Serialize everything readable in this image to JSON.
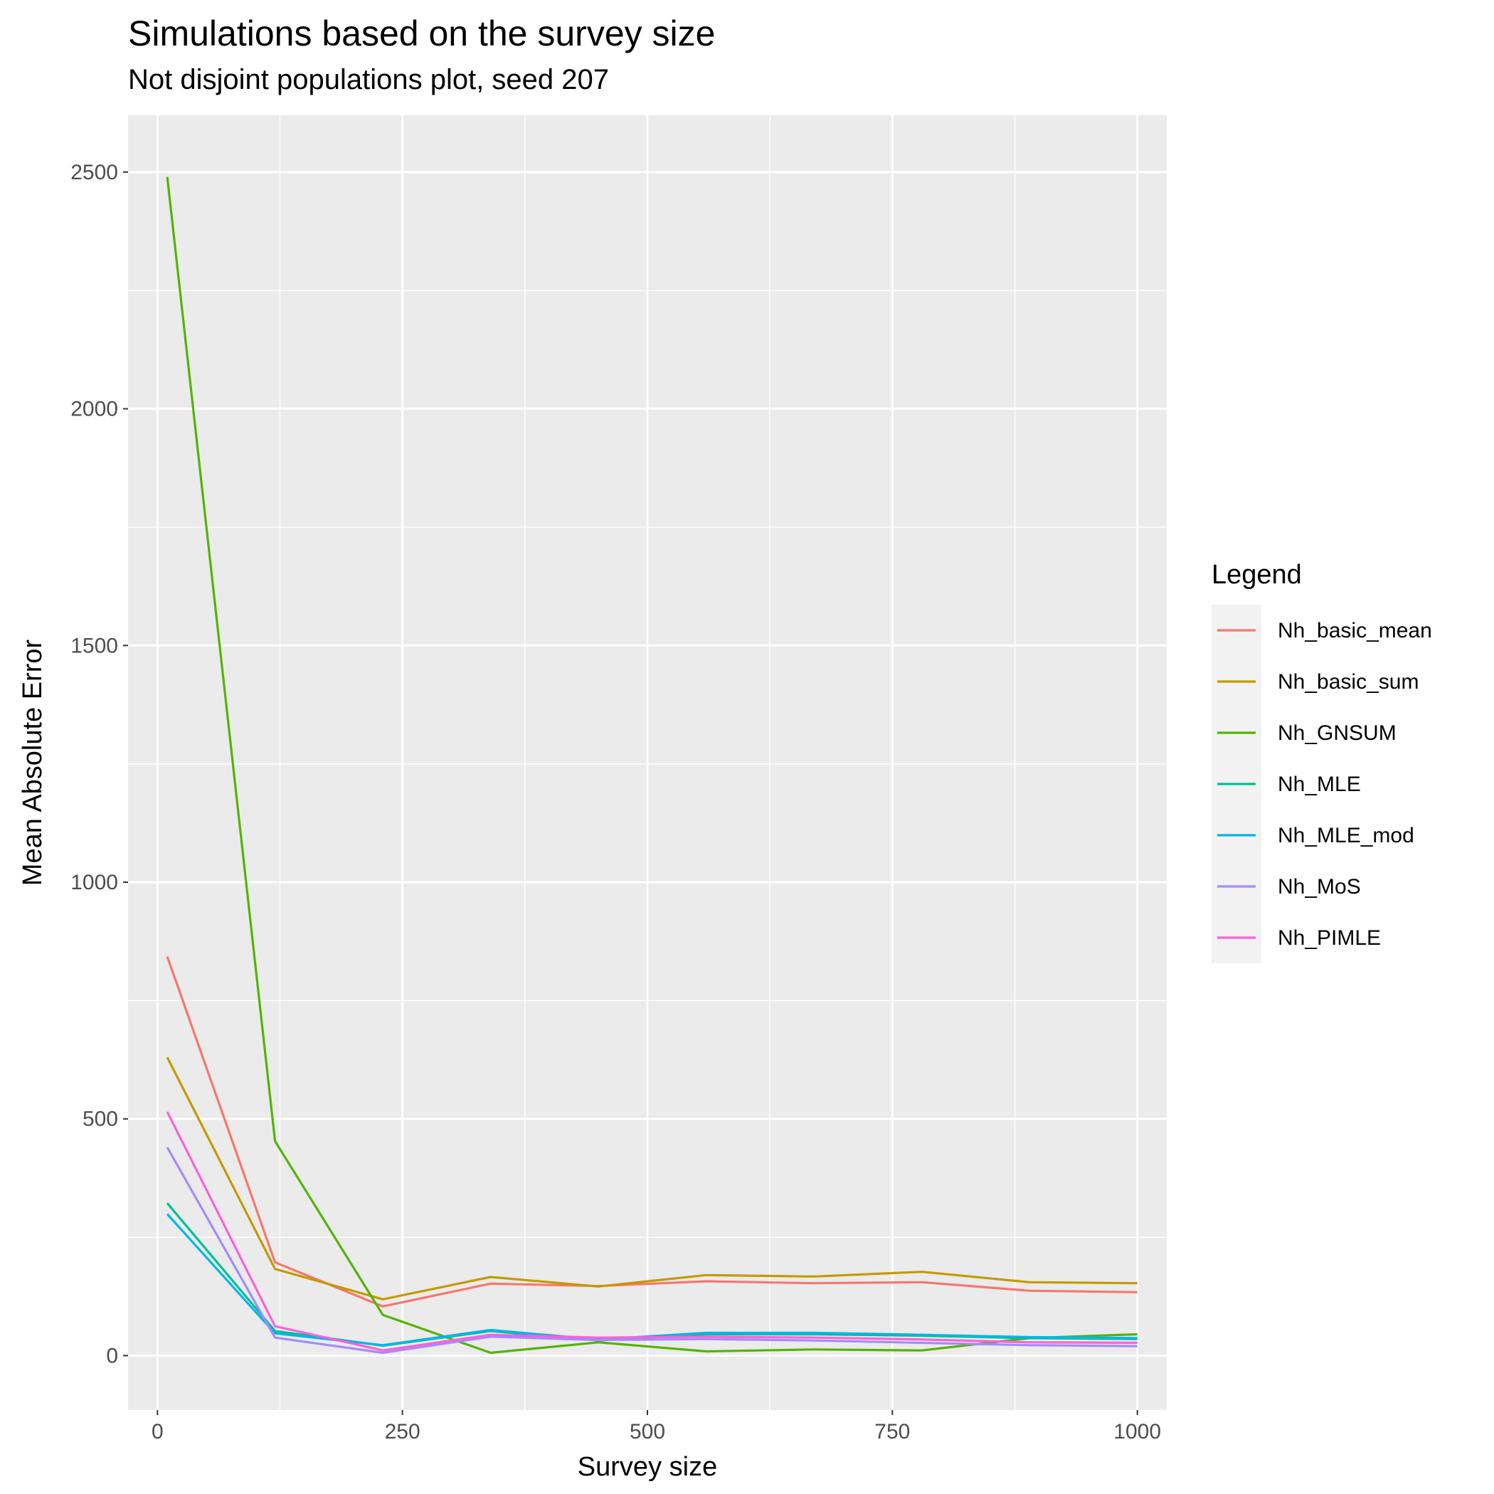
{
  "chart_data": {
    "type": "line",
    "title": "Simulations based on the survey size",
    "subtitle": "Not disjoint populations plot, seed 207",
    "xlabel": "Survey size",
    "ylabel": "Mean Absolute Error",
    "xlim": [
      -30,
      1030
    ],
    "ylim": [
      -115,
      2620
    ],
    "x_ticks": [
      0,
      250,
      500,
      750,
      1000
    ],
    "x_tick_labels": [
      "0",
      "250",
      "500",
      "750",
      "1000"
    ],
    "y_ticks": [
      0,
      500,
      1000,
      1500,
      2000,
      2500
    ],
    "y_tick_labels": [
      "0",
      "500",
      "1000",
      "1500",
      "2000",
      "2500"
    ],
    "grid": true,
    "legend": {
      "title": "Legend",
      "placement": "right"
    },
    "x": [
      10,
      120,
      230,
      340,
      450,
      560,
      670,
      780,
      890,
      1000
    ],
    "series": [
      {
        "name": "Nh_basic_mean",
        "color": "#F8766D",
        "values": [
          843,
          197,
          104,
          152,
          147,
          157,
          153,
          155,
          137,
          134
        ]
      },
      {
        "name": "Nh_basic_sum",
        "color": "#C49A00",
        "values": [
          630,
          183,
          119,
          166,
          146,
          170,
          167,
          177,
          155,
          153
        ]
      },
      {
        "name": "Nh_GNSUM",
        "color": "#53B400",
        "values": [
          2490,
          453,
          86,
          6,
          28,
          9,
          13,
          11,
          37,
          45
        ]
      },
      {
        "name": "Nh_MLE",
        "color": "#00C094",
        "values": [
          322,
          52,
          21,
          52,
          32,
          45,
          45,
          42,
          37,
          35
        ]
      },
      {
        "name": "Nh_MLE_mod",
        "color": "#00B6EB",
        "values": [
          299,
          47,
          22,
          54,
          34,
          48,
          48,
          44,
          39,
          37
        ]
      },
      {
        "name": "Nh_MoS",
        "color": "#A58AFF",
        "values": [
          440,
          38,
          6,
          40,
          33,
          35,
          32,
          27,
          22,
          20
        ]
      },
      {
        "name": "Nh_PIMLE",
        "color": "#FB61D7",
        "values": [
          515,
          62,
          11,
          44,
          38,
          40,
          38,
          34,
          28,
          27
        ]
      }
    ]
  }
}
